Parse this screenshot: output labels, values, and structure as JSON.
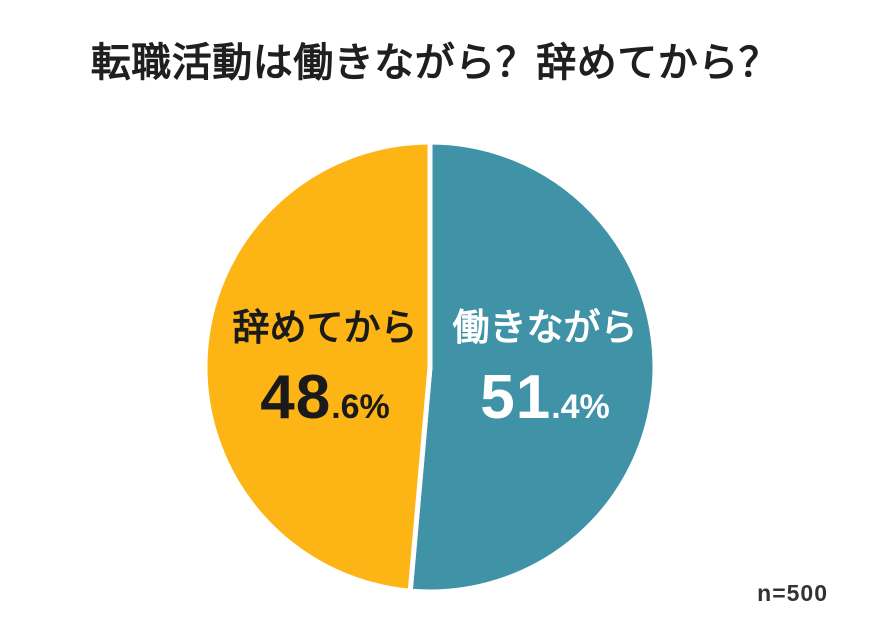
{
  "chart_data": {
    "type": "pie",
    "title": "転職活動は働きながら？辞めてから？",
    "note": "n=500",
    "start_angle_deg": 0,
    "direction": "clockwise",
    "background_color": "#ffffff",
    "divider_color": "#ffffff",
    "legend_position": "inside-slices",
    "total": 100,
    "slices": [
      {
        "label": "働きながら",
        "value": 51.4,
        "value_big": "51",
        "value_small": ".4%",
        "color": "#4092A7",
        "text_color": "#ffffff"
      },
      {
        "label": "辞めてから",
        "value": 48.6,
        "value_big": "48",
        "value_small": ".6%",
        "color": "#FDB515",
        "text_color": "#1A1A1A"
      }
    ]
  }
}
